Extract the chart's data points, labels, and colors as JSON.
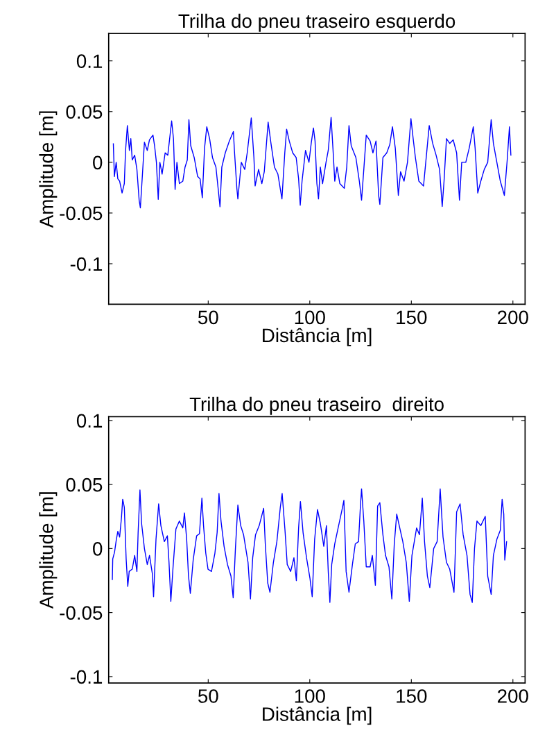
{
  "chart_data": [
    {
      "type": "line",
      "title": "Trilha do pneu traseiro esquerdo",
      "xlabel": "Distância [m]",
      "ylabel": "Amplitude [m]",
      "xlim": [
        1,
        206
      ],
      "ylim": [
        -0.14,
        0.127
      ],
      "xticks": [
        50,
        100,
        150,
        200
      ],
      "yticks": [
        -0.1,
        -0.05,
        0,
        0.05,
        0.1
      ],
      "grid": false,
      "legend": false,
      "series": [
        {
          "color": "#0000ff",
          "x": [
            3.3,
            3.8,
            4.7,
            5.5,
            6.4,
            7.6,
            8.7,
            9.3,
            10.2,
            11.2,
            11.9,
            12.6,
            13.8,
            14.9,
            16.0,
            16.6,
            17.7,
            18.6,
            20.0,
            21.1,
            22.8,
            23.6,
            24.5,
            25.4,
            26.2,
            27.3,
            28.8,
            30.1,
            32.0,
            32.9,
            33.7,
            34.6,
            35.8,
            37.5,
            38.6,
            39.7,
            40.5,
            41.4,
            43.1,
            44.8,
            46.0,
            47.1,
            48.2,
            49.3,
            50.7,
            52.1,
            53.8,
            55.0,
            55.8,
            56.7,
            58.4,
            60.4,
            62.4,
            62.9,
            64.1,
            64.6,
            66.3,
            68.0,
            69.2,
            71.2,
            72.5,
            73.1,
            74.8,
            76.4,
            77.6,
            79.5,
            80.9,
            82.6,
            84.3,
            86.3,
            87.7,
            88.6,
            89.9,
            91.6,
            93.3,
            94.5,
            95.3,
            96.2,
            97.9,
            99.6,
            100.7,
            101.8,
            102.6,
            103.5,
            104.3,
            105.2,
            106.3,
            108.0,
            109.1,
            110.5,
            111.4,
            112.3,
            113.4,
            114.8,
            117.0,
            118.2,
            119.3,
            120.4,
            122.7,
            124.4,
            125.5,
            126.6,
            127.8,
            129.7,
            131.1,
            132.6,
            133.9,
            134.5,
            136.0,
            137.9,
            139.4,
            140.7,
            142.1,
            143.6,
            144.7,
            146.4,
            148.1,
            149.8,
            150.9,
            152.0,
            153.7,
            156.0,
            157.1,
            158.8,
            160.5,
            162.2,
            163.9,
            165.2,
            166.1,
            167.3,
            168.9,
            170.6,
            172.3,
            173.7,
            174.8,
            176.8,
            178.5,
            180.5,
            181.4,
            182.7,
            184.2,
            185.9,
            187.6,
            189.3,
            190.4,
            192.1,
            193.8,
            195.8,
            197.2,
            198.3,
            199.0
          ],
          "values": [
            0.0182,
            -0.014,
            0.0,
            -0.0163,
            -0.0186,
            -0.0303,
            -0.021,
            0.0112,
            0.0362,
            0.0117,
            0.0233,
            0.0023,
            0.007,
            -0.007,
            -0.0373,
            -0.0449,
            -0.0093,
            0.0198,
            0.0117,
            0.0222,
            0.0268,
            0.0163,
            0.0,
            -0.0366,
            0.0,
            -0.0116,
            0.0093,
            0.007,
            0.0408,
            0.0233,
            -0.0268,
            0.0,
            -0.021,
            -0.0186,
            -0.0047,
            0.0023,
            0.042,
            0.0163,
            0.0047,
            -0.014,
            -0.0163,
            -0.0349,
            0.014,
            0.035,
            0.0233,
            0.0047,
            -0.0047,
            -0.028,
            -0.0438,
            -0.0047,
            0.0093,
            0.021,
            0.0303,
            0.0117,
            -0.0256,
            -0.0361,
            0.0,
            -0.007,
            0.0093,
            0.0438,
            0.0047,
            -0.0233,
            -0.007,
            -0.021,
            -0.0093,
            0.0396,
            0.0186,
            -0.0047,
            -0.0116,
            -0.0361,
            0.0093,
            0.0326,
            0.021,
            0.0093,
            0.0047,
            -0.0163,
            -0.0424,
            -0.0186,
            0.0117,
            0.0,
            0.0186,
            0.0338,
            0.021,
            -0.021,
            -0.0361,
            -0.0047,
            -0.021,
            0.0,
            0.0117,
            0.0443,
            0.014,
            -0.0186,
            -0.0047,
            -0.021,
            -0.0256,
            -0.0047,
            0.0362,
            0.0163,
            0.0047,
            -0.0186,
            -0.0373,
            -0.007,
            0.0268,
            0.021,
            0.0093,
            0.021,
            -0.0326,
            -0.0415,
            0.0047,
            0.0093,
            0.0175,
            0.035,
            0.014,
            -0.0326,
            -0.0093,
            -0.0186,
            0.0,
            0.0431,
            0.0233,
            0.0047,
            -0.0186,
            -0.0233,
            0.0,
            0.0362,
            0.0186,
            0.007,
            -0.007,
            -0.0436,
            -0.0186,
            0.0233,
            0.0186,
            0.0221,
            0.0093,
            -0.0373,
            0.0,
            0.0,
            0.014,
            0.035,
            0.014,
            -0.0303,
            -0.0186,
            -0.007,
            0.0,
            0.042,
            0.0186,
            0.0,
            -0.0186,
            -0.0326,
            0.0023,
            0.035,
            0.007
          ]
        }
      ]
    },
    {
      "type": "line",
      "title": "Trilha do pneu traseiro  direito",
      "xlabel": "Distância [m]",
      "ylabel": "Amplitude [m]",
      "xlim": [
        1,
        206
      ],
      "ylim": [
        -0.105,
        0.103
      ],
      "xticks": [
        50,
        100,
        150,
        200
      ],
      "yticks": [
        -0.1,
        -0.05,
        0,
        0.05,
        0.1
      ],
      "grid": false,
      "legend": false,
      "series": [
        {
          "color": "#0000ff",
          "x": [
            2.8,
            3.0,
            3.9,
            4.7,
            5.5,
            6.4,
            7.3,
            7.9,
            8.7,
            9.6,
            10.4,
            11.1,
            12.6,
            13.8,
            14.9,
            15.5,
            16.4,
            17.2,
            18.6,
            20.0,
            21.1,
            22.5,
            23.1,
            24.3,
            25.6,
            26.7,
            28.4,
            29.9,
            30.7,
            31.6,
            32.7,
            34.1,
            35.8,
            37.5,
            38.3,
            39.4,
            40.3,
            41.2,
            42.6,
            44.3,
            45.7,
            46.9,
            47.7,
            48.8,
            49.9,
            51.6,
            53.3,
            54.4,
            55.3,
            56.3,
            57.8,
            59.5,
            61.2,
            62.3,
            63.4,
            64.6,
            66.0,
            67.4,
            68.5,
            69.6,
            70.8,
            71.9,
            73.3,
            75.1,
            77.3,
            78.1,
            79.3,
            80.4,
            82.1,
            83.8,
            85.5,
            86.4,
            87.8,
            88.9,
            90.6,
            92.2,
            93.4,
            94.5,
            95.4,
            96.7,
            98.4,
            100.1,
            101.2,
            102.4,
            103.8,
            105.2,
            106.9,
            108.2,
            109.1,
            109.9,
            110.8,
            112.3,
            114.2,
            115.9,
            116.8,
            117.9,
            119.3,
            121.0,
            122.4,
            124.0,
            124.9,
            125.5,
            126.6,
            127.8,
            129.7,
            130.8,
            132.3,
            133.4,
            134.5,
            136.0,
            137.3,
            139.0,
            140.4,
            141.6,
            142.8,
            144.3,
            145.8,
            147.5,
            149.0,
            150.3,
            152.6,
            154.0,
            155.4,
            156.5,
            157.9,
            159.1,
            161.0,
            162.7,
            164.2,
            165.6,
            167.3,
            168.9,
            171.0,
            172.3,
            174.0,
            175.5,
            177.4,
            178.9,
            180.0,
            181.1,
            182.3,
            184.2,
            186.4,
            187.6,
            189.3,
            190.4,
            192.1,
            193.8,
            194.7,
            195.5,
            196.0,
            196.9
          ],
          "values": [
            -0.0242,
            -0.0081,
            -0.0027,
            0.0062,
            0.0134,
            0.009,
            0.0242,
            0.0385,
            0.0323,
            -0.0081,
            -0.0296,
            -0.0179,
            -0.0161,
            -0.0054,
            -0.0179,
            0.0125,
            0.0457,
            0.0197,
            0.0,
            -0.0125,
            -0.0054,
            -0.0197,
            -0.0376,
            0.0072,
            0.0349,
            0.0179,
            0.0054,
            0.0099,
            -0.0108,
            -0.0412,
            -0.0143,
            0.0152,
            0.0215,
            0.0161,
            0.0278,
            0.0072,
            -0.0215,
            -0.035,
            -0.009,
            0.0099,
            0.0116,
            0.0394,
            0.0179,
            -0.0036,
            -0.0161,
            -0.0179,
            -0.0036,
            0.0125,
            0.043,
            0.0215,
            0.0018,
            -0.0125,
            -0.0215,
            -0.0385,
            0.0,
            0.034,
            0.0179,
            0.0108,
            0.0,
            -0.0108,
            -0.0394,
            -0.0072,
            0.0108,
            0.0179,
            0.0314,
            0.0036,
            -0.0269,
            -0.0341,
            -0.0108,
            0.0054,
            0.0323,
            0.043,
            0.0143,
            -0.0125,
            -0.0179,
            -0.0072,
            -0.0251,
            0.0161,
            0.0367,
            0.0125,
            -0.0072,
            -0.0233,
            -0.0376,
            0.0072,
            0.0305,
            0.0197,
            0.0018,
            0.0179,
            -0.0179,
            -0.0421,
            -0.0125,
            0.0036,
            0.0179,
            0.0305,
            0.0376,
            -0.0179,
            -0.0341,
            -0.0125,
            0.0036,
            0.0054,
            0.0323,
            0.0466,
            0.0215,
            -0.0143,
            -0.0143,
            -0.0054,
            -0.0287,
            0.0332,
            0.0358,
            0.0108,
            -0.0054,
            -0.0143,
            -0.0394,
            0.0036,
            0.0269,
            0.0161,
            0.0054,
            -0.0108,
            -0.0412,
            -0.0054,
            0.0161,
            0.0108,
            0.0394,
            0.0054,
            -0.0215,
            -0.0305,
            0.0,
            0.0054,
            0.0466,
            0.009,
            -0.0108,
            -0.0161,
            -0.0341,
            0.0287,
            0.0349,
            0.0108,
            -0.0054,
            -0.0358,
            -0.0421,
            0.0,
            0.0215,
            0.0179,
            0.0251,
            -0.0215,
            -0.0358,
            -0.0054,
            0.0072,
            0.0143,
            0.0385,
            0.0269,
            -0.009,
            0.0054
          ]
        }
      ]
    }
  ]
}
